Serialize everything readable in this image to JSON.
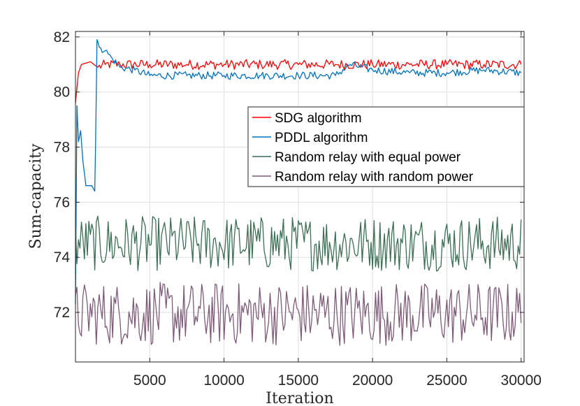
{
  "chart_data": {
    "type": "line",
    "title": "",
    "xlabel": "Iteration",
    "ylabel": "Sum-capacity",
    "xlim": [
      0,
      30200
    ],
    "ylim": [
      70.2,
      82.2
    ],
    "xticks": [
      5000,
      10000,
      15000,
      20000,
      25000,
      30000
    ],
    "xtick_labels": [
      "5000",
      "10000",
      "15000",
      "20000",
      "25000",
      "30000"
    ],
    "yticks": [
      72,
      74,
      76,
      78,
      80,
      82
    ],
    "ytick_labels": [
      "72",
      "74",
      "76",
      "78",
      "80",
      "82"
    ],
    "grid": true,
    "legend_position": "center-right",
    "series": [
      {
        "name": "SDG algorithm",
        "color": "#ff0000",
        "x": [
          0,
          200,
          400,
          1000,
          1500,
          2000,
          3000,
          5000,
          7500,
          10000,
          12500,
          15000,
          17500,
          20000,
          22500,
          25000,
          27500,
          30000
        ],
        "values": [
          79.6,
          80.7,
          81.0,
          81.1,
          80.9,
          81.0,
          81.0,
          81.0,
          81.0,
          81.0,
          81.0,
          81.0,
          81.0,
          81.0,
          81.0,
          81.0,
          81.0,
          81.0
        ],
        "noise": 0.18
      },
      {
        "name": "PDDL algorithm",
        "color": "#0072bd",
        "x": [
          0,
          100,
          200,
          350,
          500,
          700,
          900,
          1100,
          1300,
          1350,
          1450,
          1700,
          2000,
          2500,
          3000,
          4000,
          5000,
          7500,
          10000,
          12500,
          15000,
          17500,
          18500,
          20000,
          22500,
          25000,
          27500,
          30000
        ],
        "values": [
          72.3,
          79.5,
          78.2,
          78.6,
          77.5,
          76.6,
          76.6,
          76.6,
          76.4,
          78.0,
          81.9,
          81.6,
          81.5,
          81.2,
          80.9,
          80.8,
          80.6,
          80.6,
          80.6,
          80.6,
          80.6,
          80.6,
          81.0,
          80.8,
          80.7,
          80.7,
          80.8,
          80.7
        ],
        "noise": 0.14
      },
      {
        "name": "Random relay with equal power",
        "color": "#3b6e55",
        "x": [
          0,
          30000
        ],
        "values": [
          74.4,
          74.4
        ],
        "range": [
          73.5,
          75.5
        ]
      },
      {
        "name": "Random relay with random power",
        "color": "#7d5b78",
        "x": [
          0,
          30000
        ],
        "values": [
          72.0,
          72.0
        ],
        "range": [
          70.8,
          73.1
        ]
      }
    ]
  }
}
